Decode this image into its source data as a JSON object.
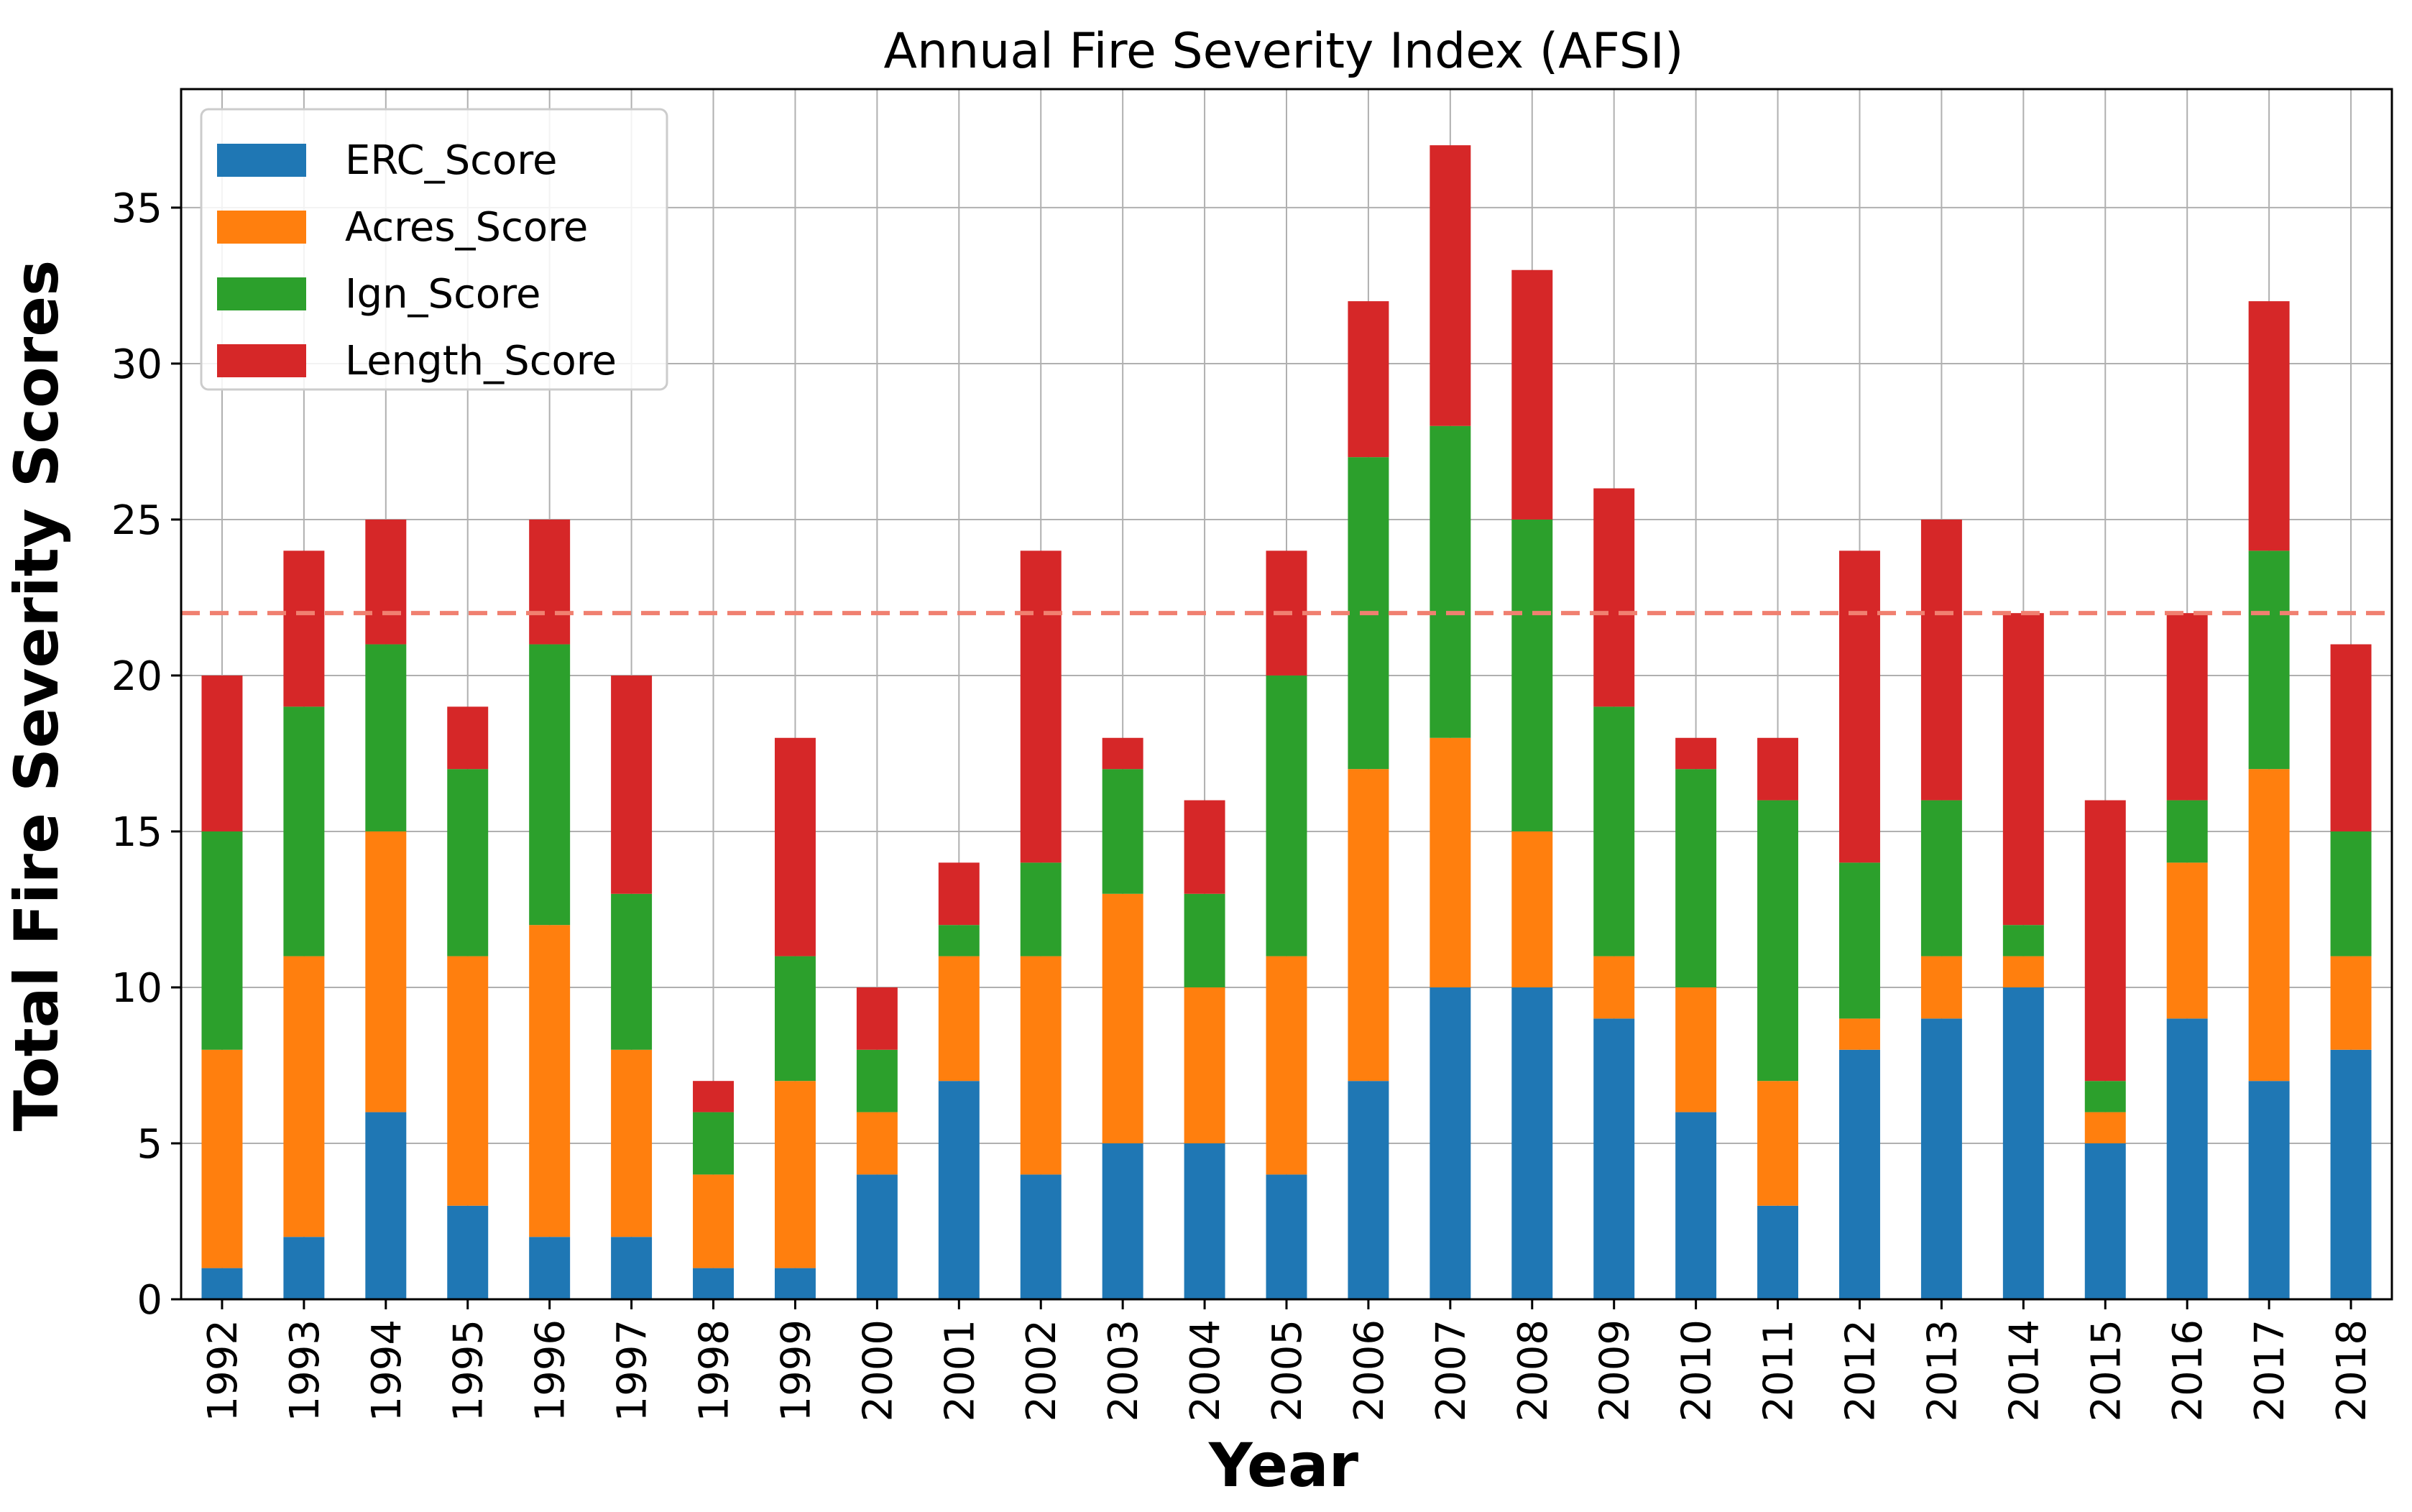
{
  "chart_data": {
    "type": "bar",
    "stacked": true,
    "title": "Annual Fire Severity Index (AFSI)",
    "xlabel": "Year",
    "ylabel": "Total Fire Severity Scores",
    "ylim": [
      0,
      38.8
    ],
    "yticks": [
      0,
      5,
      10,
      15,
      20,
      25,
      30,
      35
    ],
    "grid": true,
    "legend_position": "top-left",
    "threshold": {
      "value": 22,
      "color": "#f08070",
      "style": "dashed"
    },
    "categories": [
      "1992",
      "1993",
      "1994",
      "1995",
      "1996",
      "1997",
      "1998",
      "1999",
      "2000",
      "2001",
      "2002",
      "2003",
      "2004",
      "2005",
      "2006",
      "2007",
      "2008",
      "2009",
      "2010",
      "2011",
      "2012",
      "2013",
      "2014",
      "2015",
      "2016",
      "2017",
      "2018"
    ],
    "series": [
      {
        "name": "ERC_Score",
        "color": "#1f77b4",
        "values": [
          1,
          2,
          6,
          3,
          2,
          2,
          1,
          1,
          4,
          7,
          4,
          5,
          5,
          4,
          7,
          10,
          10,
          9,
          6,
          3,
          8,
          9,
          10,
          5,
          9,
          7,
          8
        ]
      },
      {
        "name": "Acres_Score",
        "color": "#ff7f0e",
        "values": [
          7,
          9,
          9,
          8,
          10,
          6,
          3,
          6,
          2,
          4,
          7,
          8,
          5,
          7,
          10,
          8,
          5,
          2,
          4,
          4,
          1,
          2,
          1,
          1,
          5,
          10,
          3
        ]
      },
      {
        "name": "Ign_Score",
        "color": "#2ca02c",
        "values": [
          7,
          8,
          6,
          6,
          9,
          5,
          2,
          4,
          2,
          1,
          3,
          4,
          3,
          9,
          10,
          10,
          10,
          8,
          7,
          9,
          5,
          5,
          1,
          1,
          2,
          7,
          4
        ]
      },
      {
        "name": "Length_Score",
        "color": "#d62728",
        "values": [
          5,
          5,
          4,
          2,
          4,
          7,
          1,
          7,
          2,
          2,
          10,
          1,
          3,
          4,
          5,
          9,
          8,
          7,
          1,
          2,
          10,
          9,
          10,
          9,
          6,
          8,
          6
        ]
      }
    ]
  }
}
